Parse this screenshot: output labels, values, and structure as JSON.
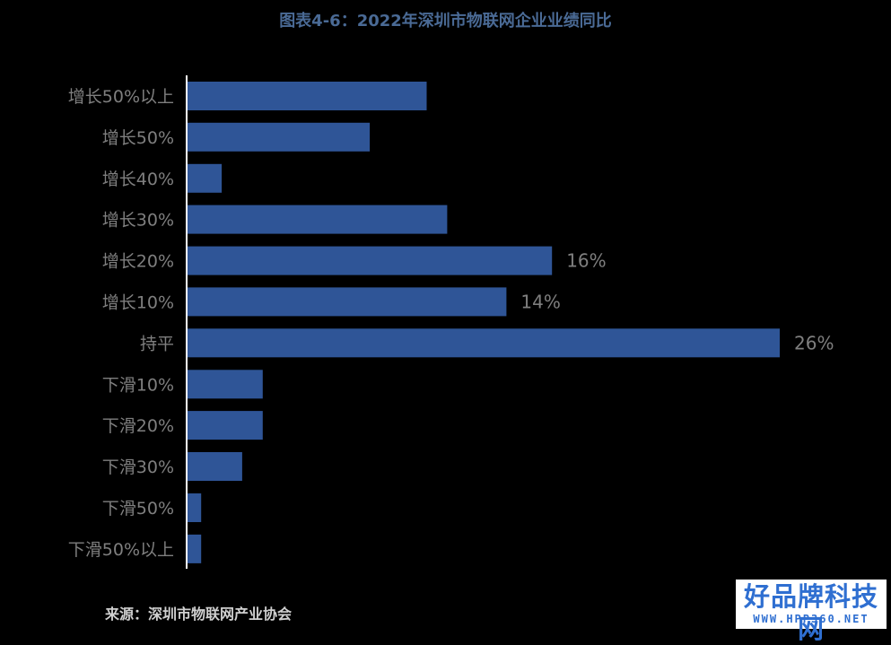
{
  "title": "图表4-6：2022年深圳市物联网企业业绩同比",
  "source": "来源：深圳市物联网产业协会",
  "watermark": {
    "main": "好品牌科技网",
    "sub": "WWW.HPP360.NET"
  },
  "colors": {
    "bar": "#2f5597",
    "axis": "#ffffff",
    "text": "#7f7f7f"
  },
  "chart_data": {
    "type": "bar",
    "orientation": "horizontal",
    "categories": [
      "增长50%以上",
      "增长50%",
      "增长40%",
      "增长30%",
      "增长20%",
      "增长10%",
      "持平",
      "下滑10%",
      "下滑20%",
      "下滑30%",
      "下滑50%",
      "下滑50%以上"
    ],
    "values": [
      10.5,
      8,
      1.5,
      11.4,
      16,
      14,
      26,
      3.3,
      3.3,
      2.4,
      0.6,
      0.6
    ],
    "data_labels": [
      "",
      "",
      "",
      "",
      "16%",
      "14%",
      "26%",
      "",
      "",
      "",
      "",
      ""
    ],
    "xlim": [
      0,
      26
    ],
    "grid": false
  }
}
